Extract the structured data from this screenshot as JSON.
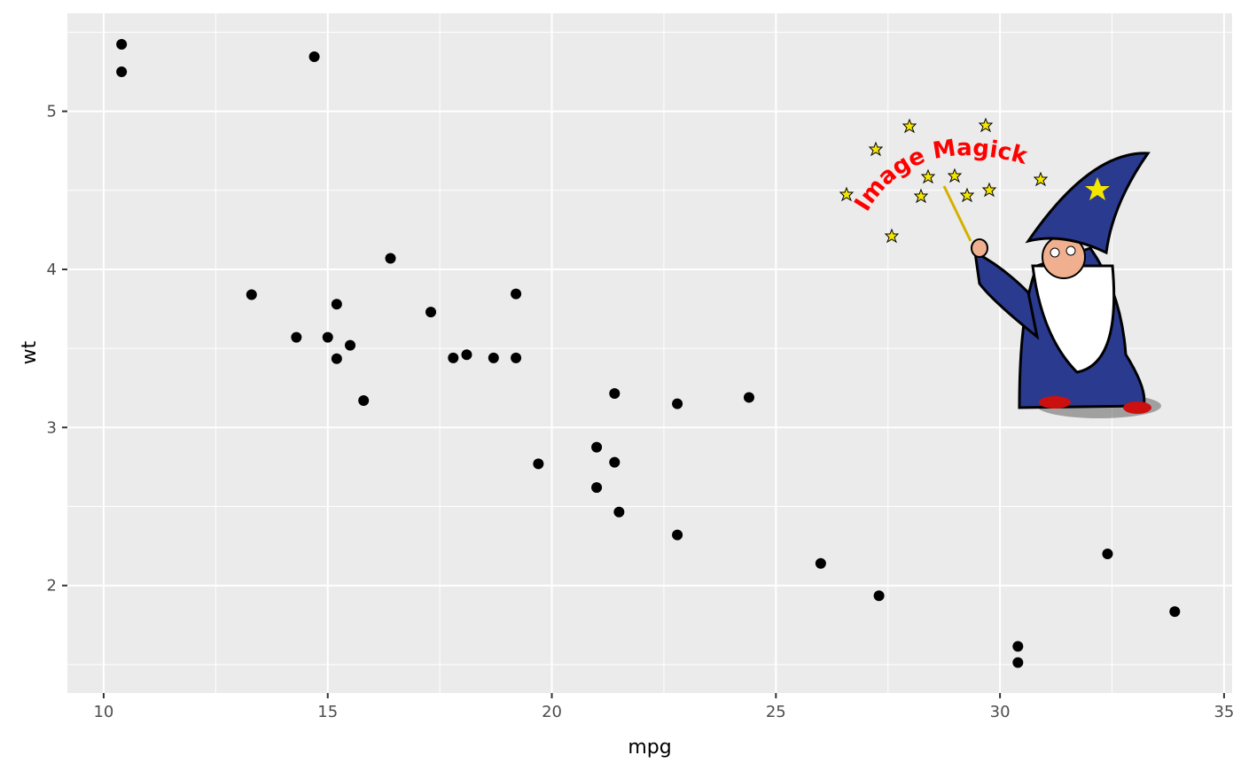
{
  "chart_data": {
    "type": "scatter",
    "title": "",
    "xlabel": "mpg",
    "ylabel": "wt",
    "xlim": [
      9.19,
      35.18
    ],
    "ylim": [
      1.32,
      5.62
    ],
    "x_ticks": [
      10,
      15,
      20,
      25,
      30,
      35
    ],
    "y_ticks": [
      2,
      3,
      4,
      5
    ],
    "x_tick_labels": [
      "10",
      "15",
      "20",
      "25",
      "30",
      "35"
    ],
    "y_tick_labels": [
      "2",
      "3",
      "4",
      "5"
    ],
    "grid": true,
    "panel_background": "#EBEBEB",
    "point_color": "#000000",
    "points": [
      {
        "x": 21.0,
        "y": 2.62
      },
      {
        "x": 21.0,
        "y": 2.875
      },
      {
        "x": 22.8,
        "y": 2.32
      },
      {
        "x": 21.4,
        "y": 3.215
      },
      {
        "x": 18.7,
        "y": 3.44
      },
      {
        "x": 18.1,
        "y": 3.46
      },
      {
        "x": 14.3,
        "y": 3.57
      },
      {
        "x": 24.4,
        "y": 3.19
      },
      {
        "x": 22.8,
        "y": 3.15
      },
      {
        "x": 19.2,
        "y": 3.44
      },
      {
        "x": 17.8,
        "y": 3.44
      },
      {
        "x": 16.4,
        "y": 4.07
      },
      {
        "x": 17.3,
        "y": 3.73
      },
      {
        "x": 15.2,
        "y": 3.78
      },
      {
        "x": 10.4,
        "y": 5.25
      },
      {
        "x": 10.4,
        "y": 5.424
      },
      {
        "x": 14.7,
        "y": 5.345
      },
      {
        "x": 32.4,
        "y": 2.2
      },
      {
        "x": 30.4,
        "y": 1.615
      },
      {
        "x": 33.9,
        "y": 1.835
      },
      {
        "x": 21.5,
        "y": 2.465
      },
      {
        "x": 15.5,
        "y": 3.52
      },
      {
        "x": 15.2,
        "y": 3.435
      },
      {
        "x": 13.3,
        "y": 3.84
      },
      {
        "x": 19.2,
        "y": 3.845
      },
      {
        "x": 27.3,
        "y": 1.935
      },
      {
        "x": 26.0,
        "y": 2.14
      },
      {
        "x": 30.4,
        "y": 1.513
      },
      {
        "x": 15.8,
        "y": 3.17
      },
      {
        "x": 19.7,
        "y": 2.77
      },
      {
        "x": 15.0,
        "y": 3.57
      },
      {
        "x": 21.4,
        "y": 2.78
      }
    ]
  },
  "logo": {
    "text": "Image Magick",
    "text_color": "#FF0000"
  }
}
